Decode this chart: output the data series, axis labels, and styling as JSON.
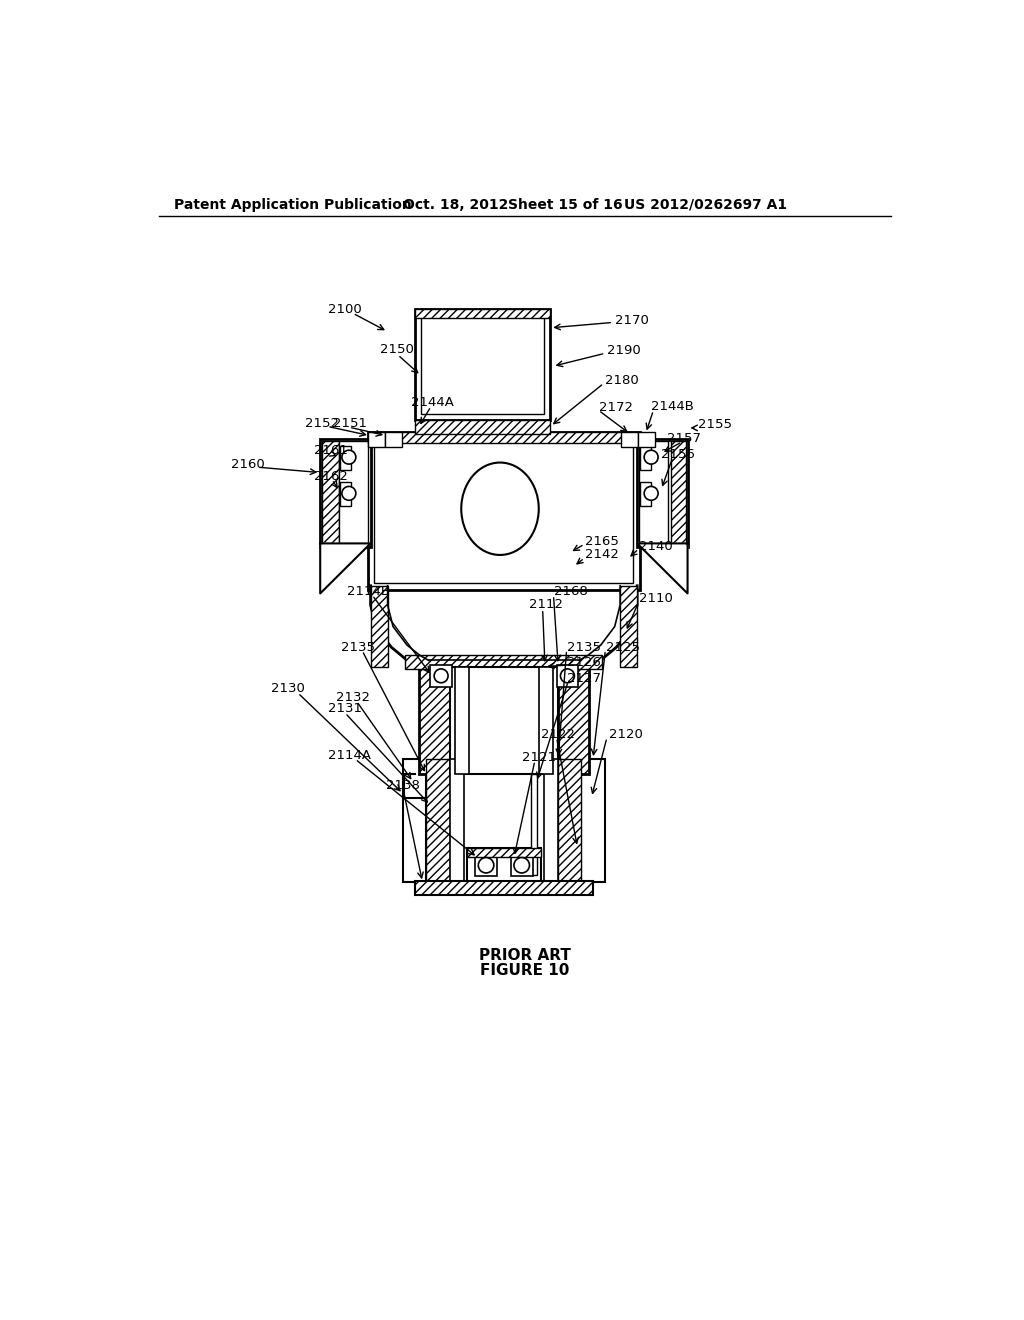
{
  "bg_color": "#ffffff",
  "header_text": "Patent Application Publication",
  "header_date": "Oct. 18, 2012",
  "header_sheet": "Sheet 15 of 16",
  "header_patent": "US 2012/0262697 A1",
  "caption_line1": "PRIOR ART",
  "caption_line2": "FIGURE 10"
}
